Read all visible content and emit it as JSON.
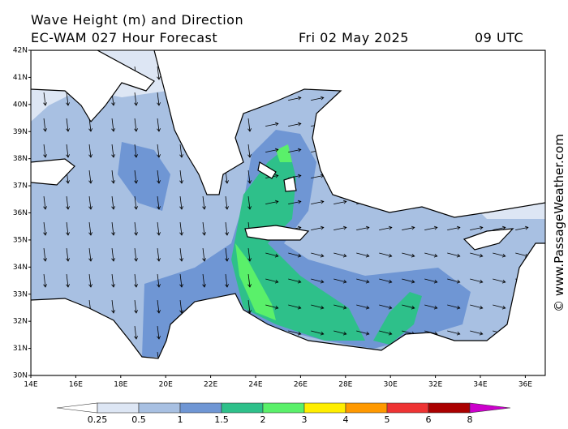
{
  "header": {
    "title": "Wave Height (m) and Direction",
    "model": "EC-WAM 027 Hour Forecast",
    "date": "Fri 02 May 2025",
    "time": "09 UTC"
  },
  "axes": {
    "lat_labels": [
      "42N",
      "41N",
      "40N",
      "39N",
      "38N",
      "37N",
      "36N",
      "35N",
      "34N",
      "33N",
      "32N",
      "31N",
      "30N"
    ],
    "lon_labels": [
      "14E",
      "16E",
      "18E",
      "20E",
      "22E",
      "24E",
      "26E",
      "28E",
      "30E",
      "32E",
      "34E",
      "36E"
    ]
  },
  "legend": {
    "labels": [
      "0.25",
      "0.5",
      "1",
      "1.5",
      "2",
      "3",
      "4",
      "5",
      "6",
      "8"
    ],
    "colors": [
      "#ffffff",
      "#dde6f4",
      "#a8c0e2",
      "#6f96d4",
      "#2ec08a",
      "#5af06a",
      "#ffee00",
      "#ff9900",
      "#ee3333",
      "#aa0000",
      "#cc00cc"
    ]
  },
  "watermark": "© www.PassageWeather.com"
}
